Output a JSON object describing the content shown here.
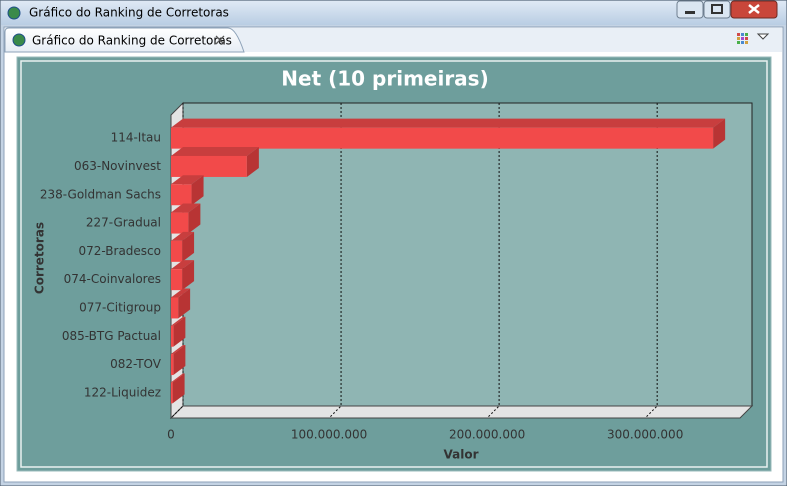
{
  "window": {
    "title": "Gráfico do Ranking de Corretoras"
  },
  "tab": {
    "title": "Gráfico do Ranking de Corretoras"
  },
  "chart_data": {
    "type": "bar",
    "orientation": "horizontal",
    "title": "Net (10 primeiras)",
    "x_label": "Valor",
    "y_label": "Corretoras",
    "categories": [
      "114-Itau",
      "063-Novinvest",
      "238-Goldman Sachs",
      "227-Gradual",
      "072-Bradesco",
      "074-Coinvalores",
      "077-Citigroup",
      "085-BTG Pactual",
      "082-TOV",
      "122-Liquidez"
    ],
    "values": [
      343000000,
      48000000,
      13000000,
      11000000,
      7000000,
      7000000,
      4500000,
      1500000,
      1500000,
      1000000
    ],
    "color": "#f24a4a",
    "xlim": [
      0,
      360000000
    ],
    "xticks": [
      0,
      {
        "value": 100000000,
        "label": "100.000.000"
      },
      {
        "value": 200000000,
        "label": "200.000.000"
      },
      {
        "value": 300000000,
        "label": "300.000.000"
      }
    ],
    "grid": true
  }
}
